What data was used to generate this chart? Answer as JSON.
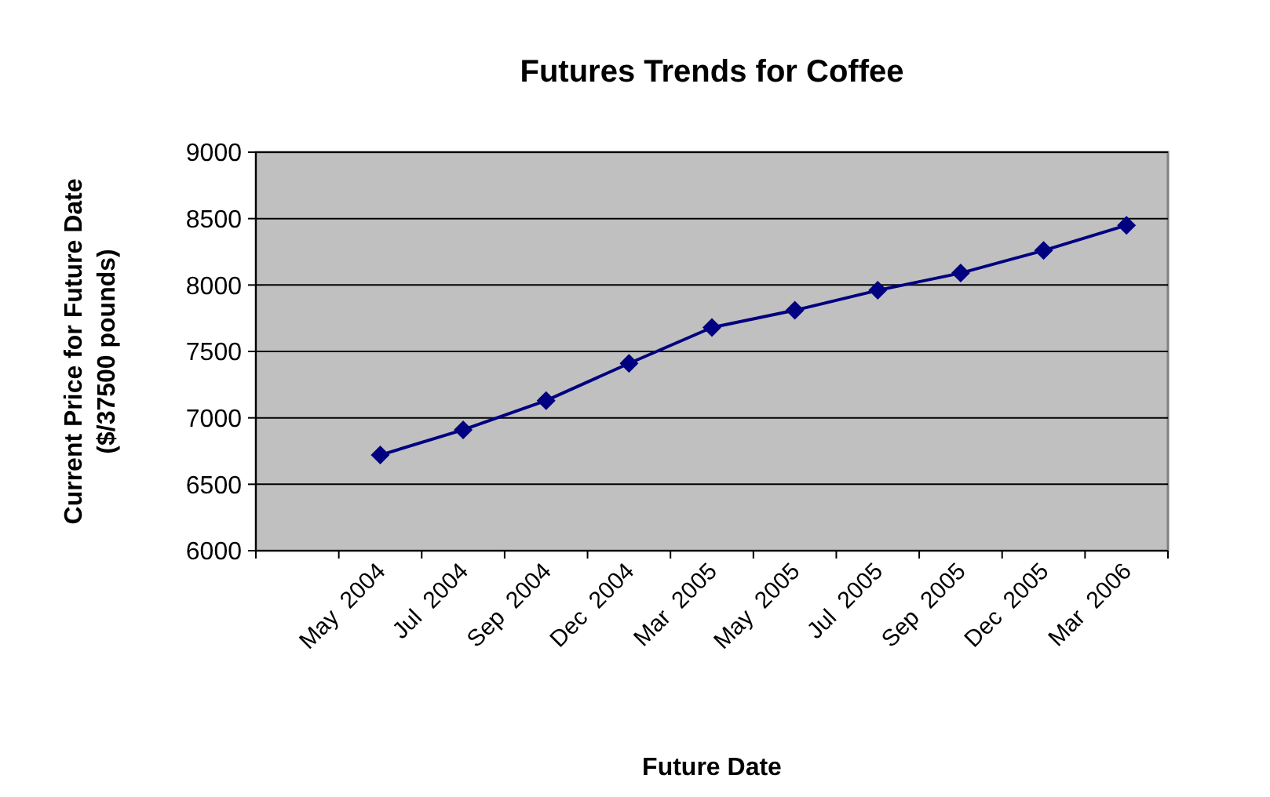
{
  "chart_data": {
    "type": "line",
    "title": "Futures Trends for Coffee",
    "xlabel": "Future Date",
    "ylabel": "Current Price for Future Date ($/37500 pounds)",
    "categories": [
      null,
      "May  2004",
      "Jul  2004",
      "Sep  2004",
      "Dec  2004",
      "Mar  2005",
      "May  2005",
      "Jul  2005",
      "Sep  2005",
      "Dec  2005",
      "Mar  2006"
    ],
    "series": [
      {
        "color": "#000080",
        "values": [
          null,
          6720,
          6910,
          7130,
          7410,
          7680,
          7810,
          7960,
          8090,
          8260,
          8450
        ]
      }
    ],
    "ylim": [
      6000,
      9000
    ],
    "yticks": [
      6000,
      6500,
      7000,
      7500,
      8000,
      8500,
      9000
    ],
    "grid": "y",
    "marker": "diamond",
    "line_style": "solid"
  }
}
